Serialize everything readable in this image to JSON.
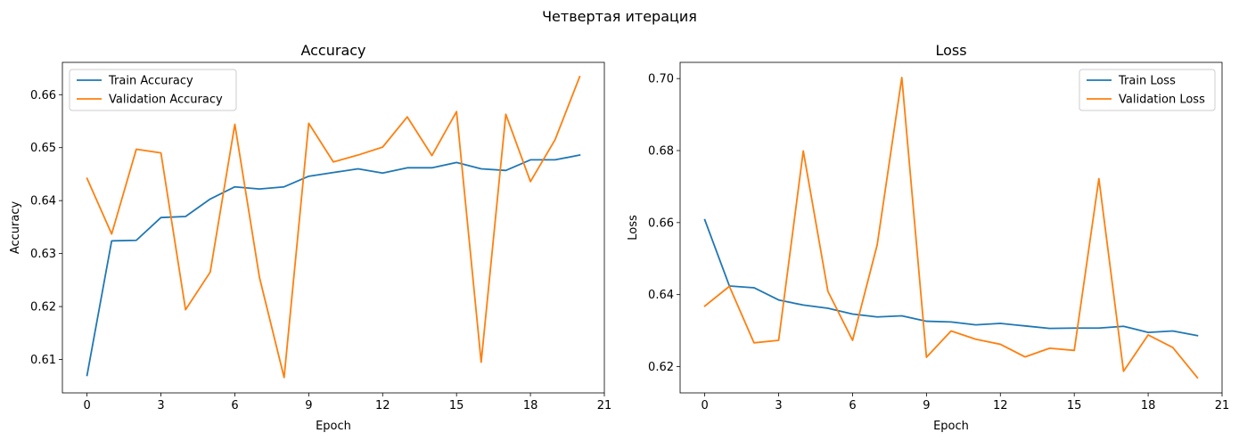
{
  "figure": {
    "suptitle": "Четвертая итерация"
  },
  "chart_data": [
    {
      "type": "line",
      "title": "Accuracy",
      "xlabel": "Epoch",
      "ylabel": "Accuracy",
      "xlim": [
        -1,
        21
      ],
      "ylim": [
        0.6037,
        0.6661
      ],
      "xticks": [
        0,
        3,
        6,
        9,
        12,
        15,
        18,
        21
      ],
      "yticks": [
        0.61,
        0.62,
        0.63,
        0.64,
        0.65,
        0.66
      ],
      "ytick_labels": [
        "0.61",
        "0.62",
        "0.63",
        "0.64",
        "0.65",
        "0.66"
      ],
      "legend_position": "upper left",
      "x": [
        0,
        1,
        2,
        3,
        4,
        5,
        6,
        7,
        8,
        9,
        10,
        11,
        12,
        13,
        14,
        15,
        16,
        17,
        18,
        19,
        20
      ],
      "series": [
        {
          "name": "Train Accuracy",
          "color": "#1f77b4",
          "values": [
            0.607,
            0.6324,
            0.6325,
            0.6368,
            0.637,
            0.6403,
            0.6426,
            0.6422,
            0.6426,
            0.6446,
            0.6453,
            0.646,
            0.6452,
            0.6462,
            0.6462,
            0.6472,
            0.646,
            0.6457,
            0.6477,
            0.6477,
            0.6486
          ]
        },
        {
          "name": "Validation Accuracy",
          "color": "#ff7f0e",
          "values": [
            0.6442,
            0.6337,
            0.6497,
            0.649,
            0.6194,
            0.6265,
            0.6544,
            0.6255,
            0.6066,
            0.6546,
            0.6473,
            0.6486,
            0.6501,
            0.6558,
            0.6485,
            0.6568,
            0.6095,
            0.6563,
            0.6436,
            0.6515,
            0.6634
          ]
        }
      ]
    },
    {
      "type": "line",
      "title": "Loss",
      "xlabel": "Epoch",
      "ylabel": "Loss",
      "xlim": [
        -1,
        21
      ],
      "ylim": [
        0.6127,
        0.7045
      ],
      "xticks": [
        0,
        3,
        6,
        9,
        12,
        15,
        18,
        21
      ],
      "yticks": [
        0.62,
        0.64,
        0.66,
        0.68,
        0.7
      ],
      "ytick_labels": [
        "0.62",
        "0.64",
        "0.66",
        "0.68",
        "0.70"
      ],
      "legend_position": "upper right",
      "x": [
        0,
        1,
        2,
        3,
        4,
        5,
        6,
        7,
        8,
        9,
        10,
        11,
        12,
        13,
        14,
        15,
        16,
        17,
        18,
        19,
        20
      ],
      "series": [
        {
          "name": "Train Loss",
          "color": "#1f77b4",
          "values": [
            0.6608,
            0.6424,
            0.6419,
            0.6385,
            0.6371,
            0.6362,
            0.6346,
            0.6338,
            0.6341,
            0.6326,
            0.6324,
            0.6316,
            0.632,
            0.6313,
            0.6306,
            0.6307,
            0.6307,
            0.6312,
            0.6295,
            0.6299,
            0.6286
          ]
        },
        {
          "name": "Validation Loss",
          "color": "#ff7f0e",
          "values": [
            0.6368,
            0.6423,
            0.6266,
            0.6273,
            0.6799,
            0.6409,
            0.6273,
            0.6538,
            0.7003,
            0.6226,
            0.6299,
            0.6276,
            0.6262,
            0.6227,
            0.6251,
            0.6245,
            0.6722,
            0.6187,
            0.6288,
            0.6253,
            0.6169
          ]
        }
      ]
    }
  ]
}
